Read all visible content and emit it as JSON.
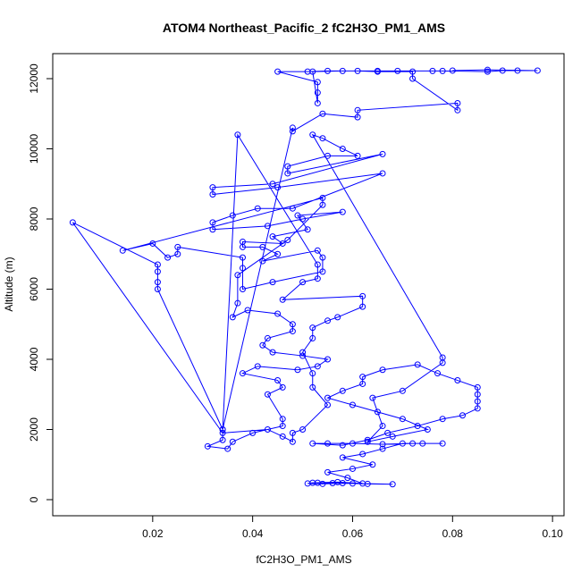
{
  "chart_data": {
    "type": "scatter",
    "title": "ATOM4 Northeast_Pacific_2 fC2H3O_PM1_AMS",
    "x_label": "fC2H3O_PM1_AMS",
    "y_label": "Altitude (m)",
    "connect_points": true,
    "xlim": [
      0.0,
      0.1023
    ],
    "ylim": [
      -459,
      12713
    ],
    "xticks": [
      0.02,
      0.04,
      0.06,
      0.08,
      {
        "value": 0.1,
        "label": "0.10"
      }
    ],
    "yticks": [
      0,
      2000,
      4000,
      6000,
      8000,
      10000,
      12000
    ],
    "series": [
      {
        "color": "#0000ff",
        "x": [
          0.053,
          0.056,
          0.06,
          0.063,
          0.068,
          0.058,
          0.054,
          0.051,
          0.052,
          0.057,
          0.062,
          0.059,
          0.055,
          0.06,
          0.064,
          0.058,
          0.062,
          0.066,
          0.07,
          0.074,
          0.078,
          0.072,
          0.066,
          0.06,
          0.055,
          0.052,
          0.058,
          0.063,
          0.067,
          0.073,
          0.078,
          0.082,
          0.085,
          0.085,
          0.085,
          0.085,
          0.081,
          0.077,
          0.073,
          0.066,
          0.062,
          0.062,
          0.058,
          0.055,
          0.06,
          0.065,
          0.07,
          0.075,
          0.068,
          0.063,
          0.066,
          0.064,
          0.07,
          0.078,
          0.078,
          0.052,
          0.054,
          0.058,
          0.061,
          0.055,
          0.047,
          0.047,
          0.066,
          0.044,
          0.032,
          0.032,
          0.045,
          0.066,
          0.048,
          0.041,
          0.036,
          0.032,
          0.032,
          0.043,
          0.05,
          0.058,
          0.049,
          0.051,
          0.044,
          0.046,
          0.038,
          0.038,
          0.042,
          0.045,
          0.042,
          0.053,
          0.054,
          0.054,
          0.044,
          0.038,
          0.038,
          0.038,
          0.025,
          0.025,
          0.023,
          0.02,
          0.014,
          0.054,
          0.054,
          0.047,
          0.037,
          0.037,
          0.036,
          0.039,
          0.045,
          0.048,
          0.048,
          0.043,
          0.042,
          0.044,
          0.05,
          0.055,
          0.053,
          0.049,
          0.041,
          0.038,
          0.045,
          0.046,
          0.043,
          0.046,
          0.046,
          0.04,
          0.036,
          0.035,
          0.031,
          0.034,
          0.034,
          0.021,
          0.021,
          0.021,
          0.021,
          0.004,
          0.034,
          0.043,
          0.046,
          0.048,
          0.048,
          0.05,
          0.055,
          0.052,
          0.052,
          0.05,
          0.052,
          0.052,
          0.055,
          0.057,
          0.062,
          0.062,
          0.046,
          0.05,
          0.053,
          0.053,
          0.037,
          0.034,
          0.048,
          0.048,
          0.054,
          0.061,
          0.061,
          0.081,
          0.081,
          0.072,
          0.072,
          0.065,
          0.061,
          0.055,
          0.051,
          0.045,
          0.053,
          0.053,
          0.053,
          0.052,
          0.058,
          0.065,
          0.069,
          0.076,
          0.078,
          0.087,
          0.09,
          0.093,
          0.097,
          0.087,
          0.08
        ],
        "values": [
          480,
          470,
          460,
          450,
          440,
          470,
          450,
          460,
          480,
          500,
          460,
          620,
          780,
          880,
          1000,
          1200,
          1300,
          1450,
          1600,
          1600,
          1600,
          1600,
          1580,
          1600,
          1600,
          1600,
          1550,
          1700,
          1900,
          2100,
          2300,
          2400,
          2600,
          2800,
          3000,
          3200,
          3400,
          3600,
          3850,
          3700,
          3500,
          3300,
          3100,
          2900,
          2700,
          2500,
          2300,
          2000,
          1800,
          1650,
          2100,
          2900,
          3100,
          3900,
          4050,
          10400,
          10300,
          10000,
          9800,
          9800,
          9500,
          9300,
          9850,
          9000,
          8900,
          8700,
          8900,
          9300,
          8300,
          8300,
          8100,
          7900,
          7700,
          7800,
          8000,
          8200,
          8100,
          7700,
          7500,
          7300,
          7350,
          7200,
          7200,
          7000,
          6800,
          7100,
          6900,
          6500,
          6200,
          6000,
          6600,
          6900,
          7200,
          7000,
          6900,
          7300,
          7100,
          8600,
          8400,
          7400,
          6400,
          5600,
          5200,
          5400,
          5300,
          5000,
          4800,
          4600,
          4400,
          4200,
          4100,
          4000,
          3800,
          3700,
          3800,
          3600,
          3400,
          3200,
          3000,
          2300,
          2100,
          1900,
          1650,
          1450,
          1520,
          1700,
          2000,
          6000,
          6200,
          6500,
          6700,
          7900,
          1900,
          2000,
          1800,
          1650,
          1900,
          2000,
          2700,
          3200,
          3600,
          4200,
          4600,
          4900,
          5100,
          5200,
          5500,
          5800,
          5700,
          6200,
          6300,
          6700,
          10400,
          2000,
          10600,
          10500,
          11000,
          10900,
          11100,
          11300,
          11100,
          12000,
          12200,
          12200,
          12220,
          12220,
          12200,
          12200,
          11900,
          11600,
          11300,
          12200,
          12220,
          12220,
          12220,
          12220,
          12220,
          12200,
          12230,
          12230,
          12230,
          12250,
          12230
        ]
      }
    ]
  }
}
